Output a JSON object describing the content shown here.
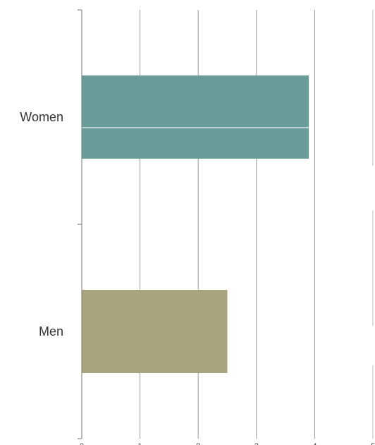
{
  "chart_data": {
    "type": "bar",
    "orientation": "horizontal",
    "categories": [
      "Women",
      "Men"
    ],
    "values": [
      3.9,
      2.5
    ],
    "bar_colors": [
      "#6A9C99",
      "#A8A47C"
    ],
    "title": "",
    "xlabel": "",
    "ylabel": "",
    "xlim": [
      0,
      5
    ],
    "x_ticks": [
      0,
      1,
      2,
      3,
      4,
      5
    ],
    "grid": true
  },
  "colors": {
    "grid": "#999999",
    "axis": "#777777",
    "divider": "#bbbbbb"
  }
}
